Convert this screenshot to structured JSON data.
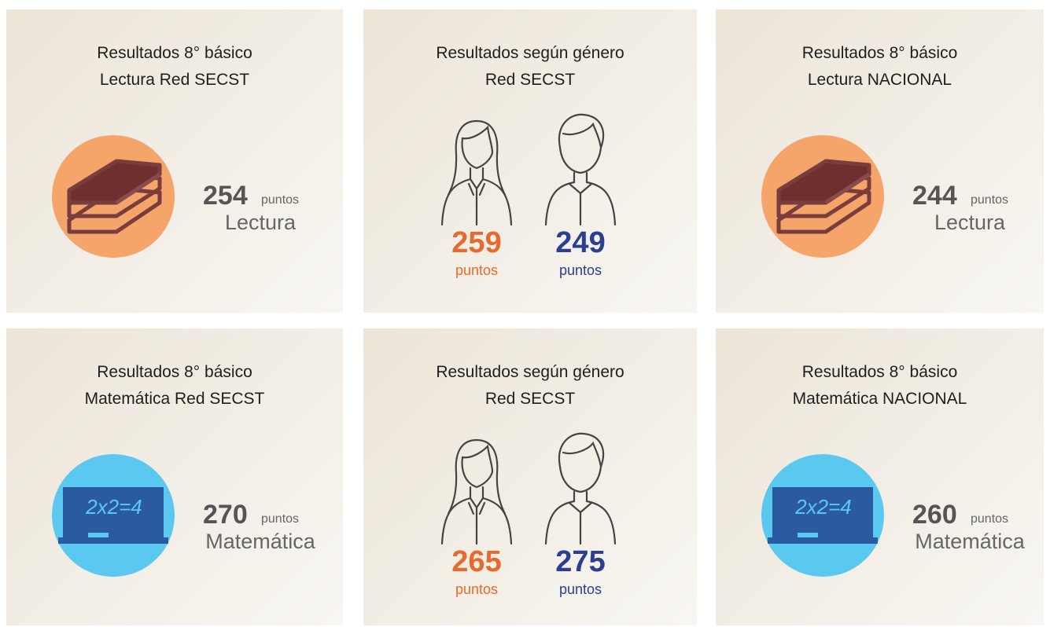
{
  "cards": [
    {
      "title": [
        "Resultados 8° básico",
        "Lectura Red SECST"
      ],
      "score": 254,
      "unit": "puntos",
      "subject": "Lectura"
    },
    {
      "title": [
        "Resultados según género",
        "Red SECST"
      ],
      "female": {
        "score": 259,
        "unit": "puntos"
      },
      "male": {
        "score": 249,
        "unit": "puntos"
      }
    },
    {
      "title": [
        "Resultados 8° básico",
        "Lectura NACIONAL"
      ],
      "score": 244,
      "unit": "puntos",
      "subject": "Lectura"
    },
    {
      "title": [
        "Resultados 8° básico",
        "Matemática Red SECST"
      ],
      "board": "2x2=4",
      "score": 270,
      "unit": "puntos",
      "subject": "Matemática"
    },
    {
      "title": [
        "Resultados según género",
        "Red SECST"
      ],
      "female": {
        "score": 265,
        "unit": "puntos"
      },
      "male": {
        "score": 275,
        "unit": "puntos"
      }
    },
    {
      "title": [
        "Resultados 8° básico",
        "Matemática NACIONAL"
      ],
      "board": "2x2=4",
      "score": 260,
      "unit": "puntos",
      "subject": "Matemática"
    }
  ]
}
